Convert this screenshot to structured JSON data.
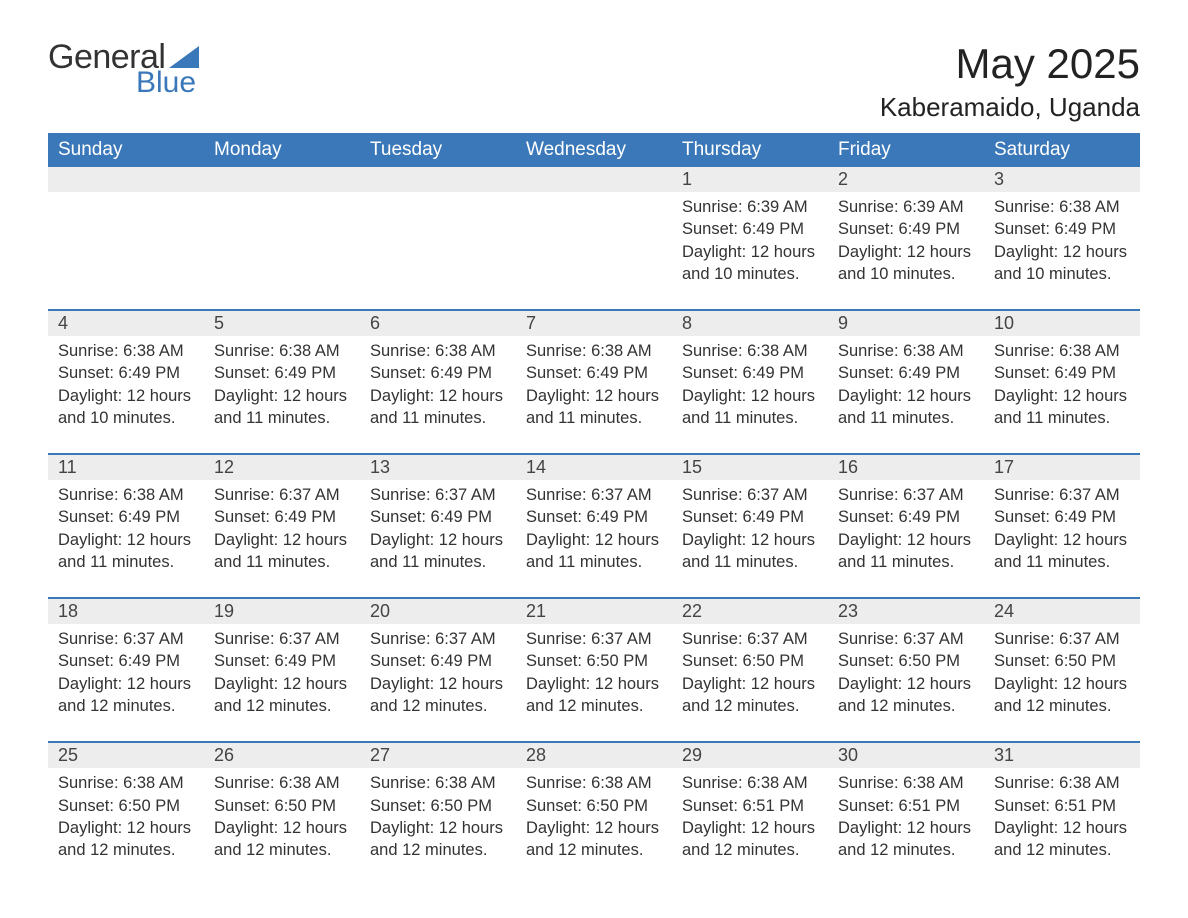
{
  "logo": {
    "text_general": "General",
    "text_blue": "Blue",
    "sail_color": "#3a78b9"
  },
  "title": "May 2025",
  "location": "Kaberamaido, Uganda",
  "colors": {
    "header_bg": "#3a78b9",
    "header_text": "#ffffff",
    "strip_bg": "#ededed",
    "border": "#3a78b9",
    "body_text": "#333333",
    "page_bg": "#ffffff"
  },
  "weekdays": [
    "Sunday",
    "Monday",
    "Tuesday",
    "Wednesday",
    "Thursday",
    "Friday",
    "Saturday"
  ],
  "weeks": [
    [
      null,
      null,
      null,
      null,
      {
        "n": "1",
        "sr": "6:39 AM",
        "ss": "6:49 PM",
        "dl": "12 hours and 10 minutes."
      },
      {
        "n": "2",
        "sr": "6:39 AM",
        "ss": "6:49 PM",
        "dl": "12 hours and 10 minutes."
      },
      {
        "n": "3",
        "sr": "6:38 AM",
        "ss": "6:49 PM",
        "dl": "12 hours and 10 minutes."
      }
    ],
    [
      {
        "n": "4",
        "sr": "6:38 AM",
        "ss": "6:49 PM",
        "dl": "12 hours and 10 minutes."
      },
      {
        "n": "5",
        "sr": "6:38 AM",
        "ss": "6:49 PM",
        "dl": "12 hours and 11 minutes."
      },
      {
        "n": "6",
        "sr": "6:38 AM",
        "ss": "6:49 PM",
        "dl": "12 hours and 11 minutes."
      },
      {
        "n": "7",
        "sr": "6:38 AM",
        "ss": "6:49 PM",
        "dl": "12 hours and 11 minutes."
      },
      {
        "n": "8",
        "sr": "6:38 AM",
        "ss": "6:49 PM",
        "dl": "12 hours and 11 minutes."
      },
      {
        "n": "9",
        "sr": "6:38 AM",
        "ss": "6:49 PM",
        "dl": "12 hours and 11 minutes."
      },
      {
        "n": "10",
        "sr": "6:38 AM",
        "ss": "6:49 PM",
        "dl": "12 hours and 11 minutes."
      }
    ],
    [
      {
        "n": "11",
        "sr": "6:38 AM",
        "ss": "6:49 PM",
        "dl": "12 hours and 11 minutes."
      },
      {
        "n": "12",
        "sr": "6:37 AM",
        "ss": "6:49 PM",
        "dl": "12 hours and 11 minutes."
      },
      {
        "n": "13",
        "sr": "6:37 AM",
        "ss": "6:49 PM",
        "dl": "12 hours and 11 minutes."
      },
      {
        "n": "14",
        "sr": "6:37 AM",
        "ss": "6:49 PM",
        "dl": "12 hours and 11 minutes."
      },
      {
        "n": "15",
        "sr": "6:37 AM",
        "ss": "6:49 PM",
        "dl": "12 hours and 11 minutes."
      },
      {
        "n": "16",
        "sr": "6:37 AM",
        "ss": "6:49 PM",
        "dl": "12 hours and 11 minutes."
      },
      {
        "n": "17",
        "sr": "6:37 AM",
        "ss": "6:49 PM",
        "dl": "12 hours and 11 minutes."
      }
    ],
    [
      {
        "n": "18",
        "sr": "6:37 AM",
        "ss": "6:49 PM",
        "dl": "12 hours and 12 minutes."
      },
      {
        "n": "19",
        "sr": "6:37 AM",
        "ss": "6:49 PM",
        "dl": "12 hours and 12 minutes."
      },
      {
        "n": "20",
        "sr": "6:37 AM",
        "ss": "6:49 PM",
        "dl": "12 hours and 12 minutes."
      },
      {
        "n": "21",
        "sr": "6:37 AM",
        "ss": "6:50 PM",
        "dl": "12 hours and 12 minutes."
      },
      {
        "n": "22",
        "sr": "6:37 AM",
        "ss": "6:50 PM",
        "dl": "12 hours and 12 minutes."
      },
      {
        "n": "23",
        "sr": "6:37 AM",
        "ss": "6:50 PM",
        "dl": "12 hours and 12 minutes."
      },
      {
        "n": "24",
        "sr": "6:37 AM",
        "ss": "6:50 PM",
        "dl": "12 hours and 12 minutes."
      }
    ],
    [
      {
        "n": "25",
        "sr": "6:38 AM",
        "ss": "6:50 PM",
        "dl": "12 hours and 12 minutes."
      },
      {
        "n": "26",
        "sr": "6:38 AM",
        "ss": "6:50 PM",
        "dl": "12 hours and 12 minutes."
      },
      {
        "n": "27",
        "sr": "6:38 AM",
        "ss": "6:50 PM",
        "dl": "12 hours and 12 minutes."
      },
      {
        "n": "28",
        "sr": "6:38 AM",
        "ss": "6:50 PM",
        "dl": "12 hours and 12 minutes."
      },
      {
        "n": "29",
        "sr": "6:38 AM",
        "ss": "6:51 PM",
        "dl": "12 hours and 12 minutes."
      },
      {
        "n": "30",
        "sr": "6:38 AM",
        "ss": "6:51 PM",
        "dl": "12 hours and 12 minutes."
      },
      {
        "n": "31",
        "sr": "6:38 AM",
        "ss": "6:51 PM",
        "dl": "12 hours and 12 minutes."
      }
    ]
  ],
  "labels": {
    "sunrise": "Sunrise: ",
    "sunset": "Sunset: ",
    "daylight": "Daylight: "
  }
}
